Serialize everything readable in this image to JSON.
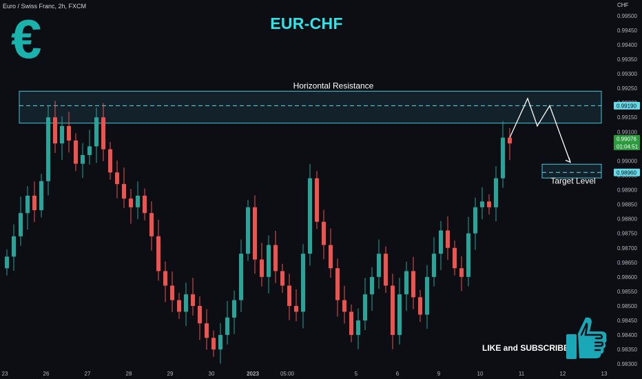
{
  "header": {
    "symbol": "Euro / Swiss Franc, 2h, FXCM",
    "title": "EUR-CHF",
    "logo_glyph": "€",
    "currency": "CHF"
  },
  "footer": {
    "cta": "LIKE and SUBSCRIBE",
    "cta_icon": "thumbs-up-icon"
  },
  "colors": {
    "background": "#0c0e14",
    "bull": "#26a69a",
    "bear": "#ef5350",
    "title": "#2ee6ea",
    "logo": "#1ab2ac",
    "zone_border": "#42c8d8",
    "zone_fill": "#1c3a48",
    "dashed": "#66dcea",
    "path": "#ffffff",
    "current_price_badge": "#2b9a3d"
  },
  "chart_data": {
    "type": "candlestick",
    "instrument": "EUR/CHF",
    "timeframe": "2h",
    "feed": "FXCM",
    "ylim": [
      0.9831,
      0.9954
    ],
    "y_ticks": [
      "0.99500",
      "0.99450",
      "0.99400",
      "0.99350",
      "0.99300",
      "0.99250",
      "0.99200",
      "0.99150",
      "0.99100",
      "0.99050",
      "0.99000",
      "0.98950",
      "0.98900",
      "0.98850",
      "0.98800",
      "0.98750",
      "0.98700",
      "0.98650",
      "0.98600",
      "0.98550",
      "0.98500",
      "0.98450",
      "0.98400",
      "0.98350",
      "0.98300"
    ],
    "x_ticks": [
      {
        "label": "23",
        "pos": 0.0
      },
      {
        "label": "26",
        "pos": 6.0
      },
      {
        "label": "27",
        "pos": 12.0
      },
      {
        "label": "28",
        "pos": 18.0
      },
      {
        "label": "29",
        "pos": 24.0
      },
      {
        "label": "30",
        "pos": 30.0
      },
      {
        "label": "2023",
        "pos": 36.0,
        "bold": true
      },
      {
        "label": "05:00",
        "pos": 41.0
      },
      {
        "label": "5",
        "pos": 51.0
      },
      {
        "label": "6",
        "pos": 57.0
      },
      {
        "label": "9",
        "pos": 63.0
      },
      {
        "label": "10",
        "pos": 69.0
      },
      {
        "label": "11",
        "pos": 75.0
      },
      {
        "label": "12",
        "pos": 81.0
      },
      {
        "label": "13",
        "pos": 87.0
      }
    ],
    "bar_spacing_index": 0.0,
    "closes": [
      0.9867,
      0.9874,
      0.9882,
      0.9888,
      0.9883,
      0.9893,
      0.9915,
      0.9906,
      0.9912,
      0.9907,
      0.9899,
      0.9902,
      0.9905,
      0.9915,
      0.9904,
      0.9896,
      0.9892,
      0.9887,
      0.9884,
      0.9888,
      0.9882,
      0.9874,
      0.9862,
      0.9857,
      0.9852,
      0.9848,
      0.9854,
      0.985,
      0.9844,
      0.9839,
      0.9835,
      0.984,
      0.9846,
      0.9852,
      0.9868,
      0.9884,
      0.9866,
      0.986,
      0.9871,
      0.9862,
      0.9857,
      0.985,
      0.9848,
      0.9868,
      0.9894,
      0.9879,
      0.9871,
      0.9863,
      0.9852,
      0.9848,
      0.984,
      0.9845,
      0.9854,
      0.986,
      0.9868,
      0.9857,
      0.984,
      0.9854,
      0.9862,
      0.9853,
      0.9847,
      0.986,
      0.9868,
      0.9876,
      0.987,
      0.9863,
      0.986,
      0.9875,
      0.9884,
      0.9886,
      0.9884,
      0.9894,
      0.9908,
      0.9906
    ],
    "current_price": "0.99076",
    "countdown": "01:04:51",
    "annotations": {
      "zone_label": "Horizontal Resistance",
      "zone_range": [
        0.9913,
        0.9924
      ],
      "resistance_level": "0.99190",
      "target_label": "Target Level",
      "target_level": "0.98960",
      "projected_path": [
        0.9908,
        0.99215,
        0.9912,
        0.9919,
        0.98995
      ]
    },
    "grid": false
  }
}
